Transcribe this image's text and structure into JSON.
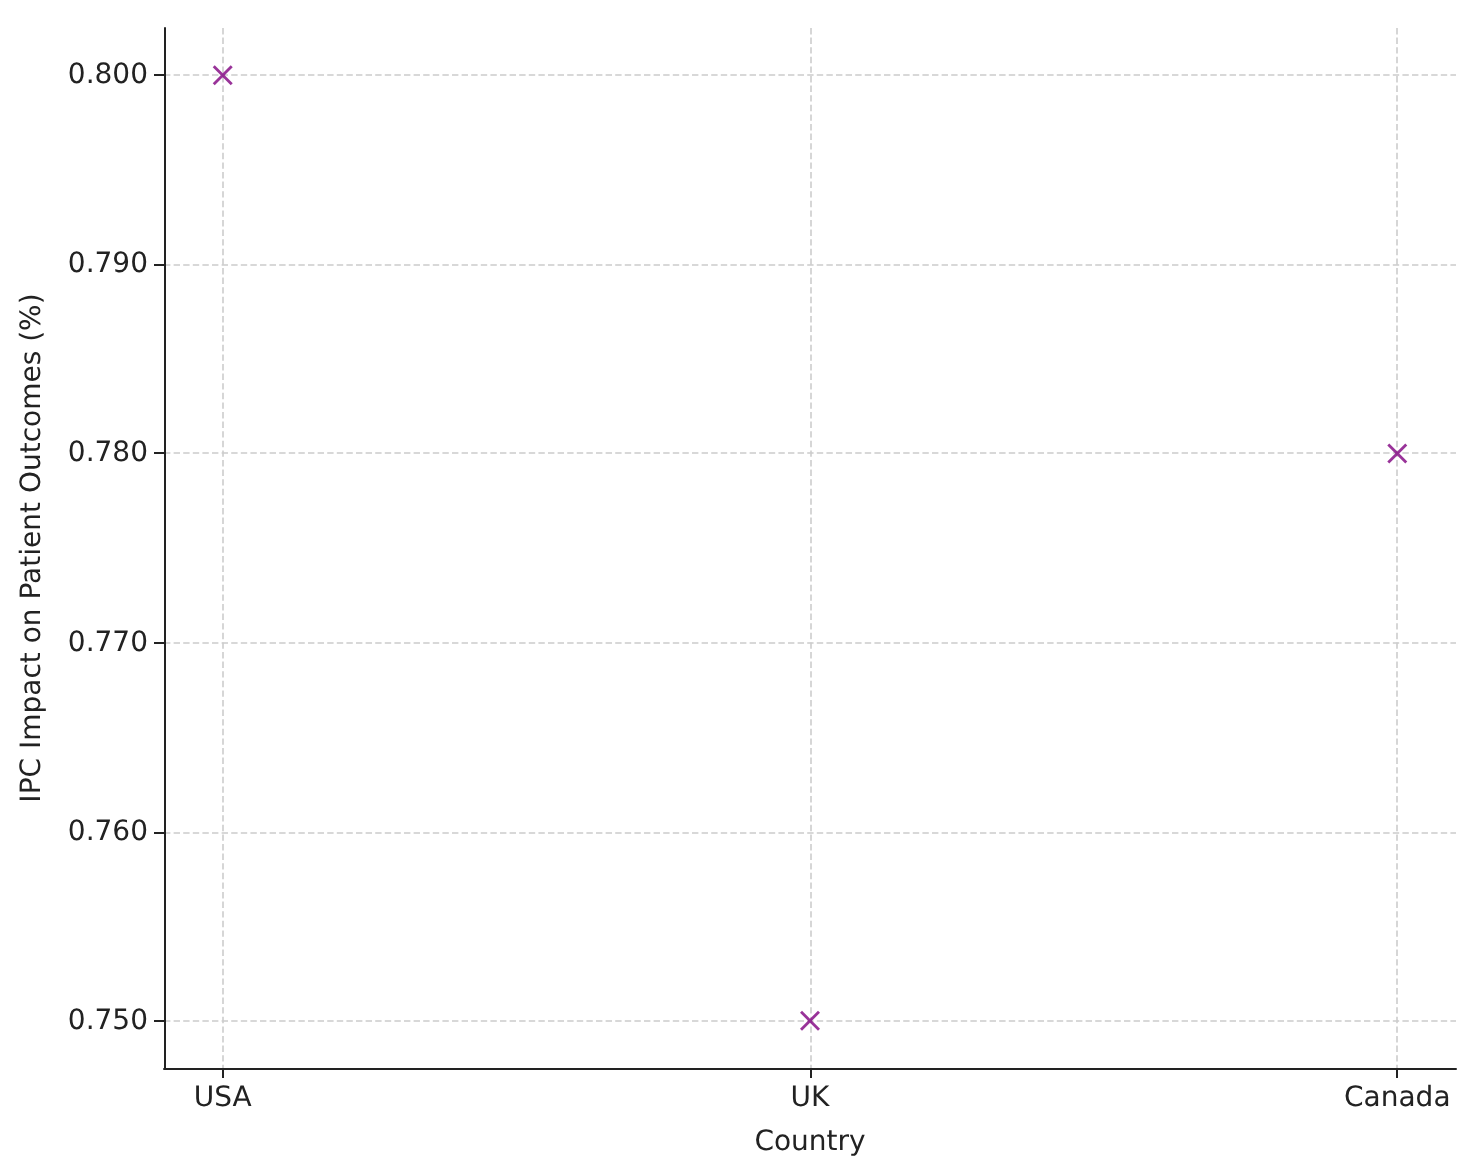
{
  "chart_data": {
    "type": "scatter",
    "xlabel": "Country",
    "ylabel": "IPC Impact on Patient Outcomes (%)",
    "categories": [
      "USA",
      "UK",
      "Canada"
    ],
    "series": [
      {
        "color": "#800080",
        "values": [
          0.8,
          0.75,
          0.78
        ]
      }
    ],
    "ylim": [
      0.7475,
      0.8025
    ],
    "yticks": [
      {
        "value": 0.75,
        "label": "0.750"
      },
      {
        "value": 0.76,
        "label": "0.760"
      },
      {
        "value": 0.77,
        "label": "0.770"
      },
      {
        "value": 0.78,
        "label": "0.780"
      },
      {
        "value": 0.79,
        "label": "0.790"
      },
      {
        "value": 0.8,
        "label": "0.800"
      }
    ],
    "grid": true,
    "marker": "cross"
  }
}
